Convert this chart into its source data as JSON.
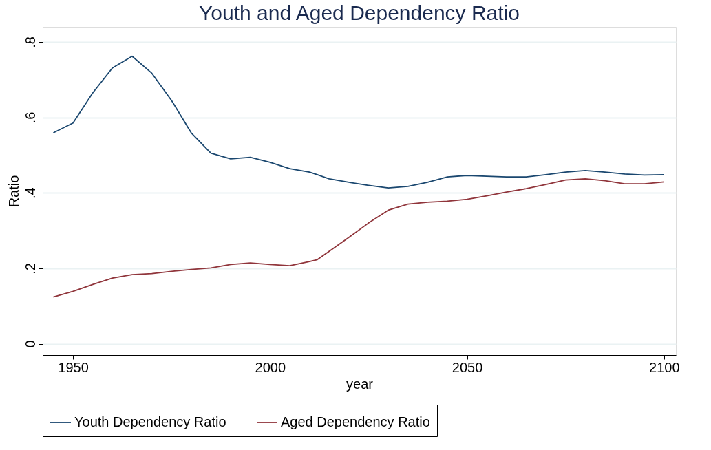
{
  "chart_data": {
    "type": "line",
    "title": "Youth and Aged Dependency Ratio",
    "xlabel": "year",
    "ylabel": "Ratio",
    "x": [
      1945,
      1950,
      1955,
      1960,
      1965,
      1970,
      1975,
      1980,
      1985,
      1990,
      1995,
      2000,
      2005,
      2010,
      2012,
      2015,
      2020,
      2025,
      2030,
      2035,
      2040,
      2045,
      2050,
      2055,
      2060,
      2065,
      2070,
      2075,
      2080,
      2085,
      2090,
      2095,
      2100
    ],
    "series": [
      {
        "name": "Youth Dependency Ratio",
        "color": "#1a476f",
        "values": [
          0.559,
          0.585,
          0.665,
          0.731,
          0.762,
          0.717,
          0.645,
          0.559,
          0.505,
          0.49,
          0.494,
          0.481,
          0.464,
          0.455,
          0.448,
          0.437,
          0.428,
          0.42,
          0.413,
          0.417,
          0.428,
          0.442,
          0.446,
          0.444,
          0.442,
          0.442,
          0.448,
          0.455,
          0.459,
          0.455,
          0.45,
          0.447,
          0.448
        ]
      },
      {
        "name": "Aged Dependency Ratio",
        "color": "#90353b",
        "values": [
          0.124,
          0.139,
          0.157,
          0.174,
          0.183,
          0.186,
          0.192,
          0.197,
          0.201,
          0.21,
          0.214,
          0.21,
          0.207,
          0.218,
          0.223,
          0.245,
          0.282,
          0.32,
          0.354,
          0.37,
          0.375,
          0.378,
          0.383,
          0.392,
          0.402,
          0.411,
          0.422,
          0.434,
          0.437,
          0.432,
          0.424,
          0.424,
          0.429
        ]
      }
    ],
    "xlim": [
      1942.3,
      2103
    ],
    "xticks": [
      1950,
      2000,
      2050,
      2100
    ],
    "ylim": [
      -0.03,
      0.84
    ],
    "yticks": [
      0,
      {
        "value": 0.2,
        "label": ".2"
      },
      {
        "value": 0.4,
        "label": ".4"
      },
      {
        "value": 0.6,
        "label": ".6"
      },
      {
        "value": 0.8,
        "label": ".8"
      }
    ],
    "grid": "y",
    "legend": "bottom",
    "marker": "none",
    "line_style": "solid"
  }
}
